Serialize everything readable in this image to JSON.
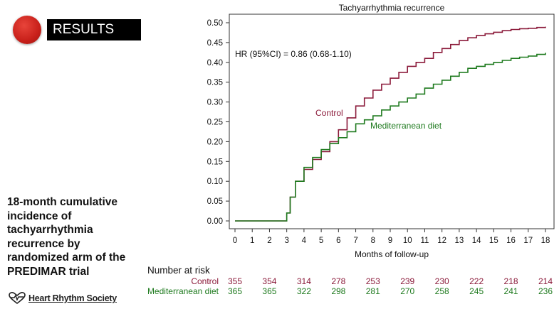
{
  "header": {
    "results_label": "RESULTS"
  },
  "side_caption": "18-month cumulative incidence of tachyarrhythmia recurrence by randomized arm of the PREDIMAR trial",
  "logo": {
    "text": "Heart Rhythm Society",
    "icon": "heart-pulse-icon"
  },
  "colors": {
    "control": "#8b1a3a",
    "mediterranean": "#1e7a1e"
  },
  "chart_data": {
    "type": "line",
    "title": "Tachyarrhythmia recurrence",
    "xlabel": "Months of follow-up",
    "ylabel": "",
    "xlim": [
      0,
      18
    ],
    "ylim": [
      0,
      0.5
    ],
    "x_ticks": [
      0,
      1,
      2,
      3,
      4,
      5,
      6,
      7,
      8,
      9,
      10,
      11,
      12,
      13,
      14,
      15,
      16,
      17,
      18
    ],
    "y_ticks": [
      "0.00",
      "0.05",
      "0.10",
      "0.15",
      "0.20",
      "0.25",
      "0.30",
      "0.35",
      "0.40",
      "0.45",
      "0.50"
    ],
    "grid": false,
    "annotation": "HR (95%CI) = 0.86 (0.68-1.10)",
    "series": [
      {
        "name": "Control",
        "x": [
          0,
          2.95,
          3.0,
          3.2,
          3.5,
          4.0,
          4.5,
          5.0,
          5.5,
          6.0,
          6.5,
          7.0,
          7.5,
          8.0,
          8.5,
          9.0,
          9.5,
          10.0,
          10.5,
          11.0,
          11.5,
          12.0,
          12.5,
          13.0,
          13.5,
          14.0,
          14.5,
          15.0,
          15.5,
          16.0,
          16.5,
          17.0,
          17.5,
          18.0
        ],
        "y": [
          0,
          0,
          0.02,
          0.06,
          0.1,
          0.13,
          0.155,
          0.175,
          0.2,
          0.23,
          0.26,
          0.29,
          0.31,
          0.33,
          0.345,
          0.36,
          0.375,
          0.39,
          0.4,
          0.41,
          0.425,
          0.435,
          0.445,
          0.455,
          0.462,
          0.468,
          0.472,
          0.476,
          0.48,
          0.483,
          0.485,
          0.486,
          0.488,
          0.49
        ]
      },
      {
        "name": "Mediterranean diet",
        "x": [
          0,
          2.95,
          3.0,
          3.2,
          3.5,
          4.0,
          4.5,
          5.0,
          5.5,
          6.0,
          6.5,
          7.0,
          7.5,
          8.0,
          8.5,
          9.0,
          9.5,
          10.0,
          10.5,
          11.0,
          11.5,
          12.0,
          12.5,
          13.0,
          13.5,
          14.0,
          14.5,
          15.0,
          15.5,
          16.0,
          16.5,
          17.0,
          17.5,
          18.0
        ],
        "y": [
          0,
          0,
          0.02,
          0.06,
          0.1,
          0.135,
          0.16,
          0.18,
          0.195,
          0.21,
          0.225,
          0.245,
          0.255,
          0.265,
          0.28,
          0.29,
          0.3,
          0.31,
          0.32,
          0.335,
          0.345,
          0.355,
          0.365,
          0.375,
          0.385,
          0.39,
          0.395,
          0.4,
          0.405,
          0.41,
          0.413,
          0.416,
          0.42,
          0.424
        ]
      }
    ],
    "risk_table": {
      "title": "Number at risk",
      "x": [
        0,
        2,
        4,
        6,
        8,
        10,
        12,
        14,
        16,
        18
      ],
      "rows": [
        {
          "name": "Control",
          "values": [
            355,
            354,
            314,
            278,
            253,
            239,
            230,
            222,
            218,
            214
          ]
        },
        {
          "name": "Mediterranean diet",
          "values": [
            365,
            365,
            322,
            298,
            281,
            270,
            258,
            245,
            241,
            236
          ]
        }
      ]
    },
    "series_labels": [
      {
        "text": "Control",
        "series": 0
      },
      {
        "text": "Mediterranean diet",
        "series": 1
      }
    ]
  }
}
